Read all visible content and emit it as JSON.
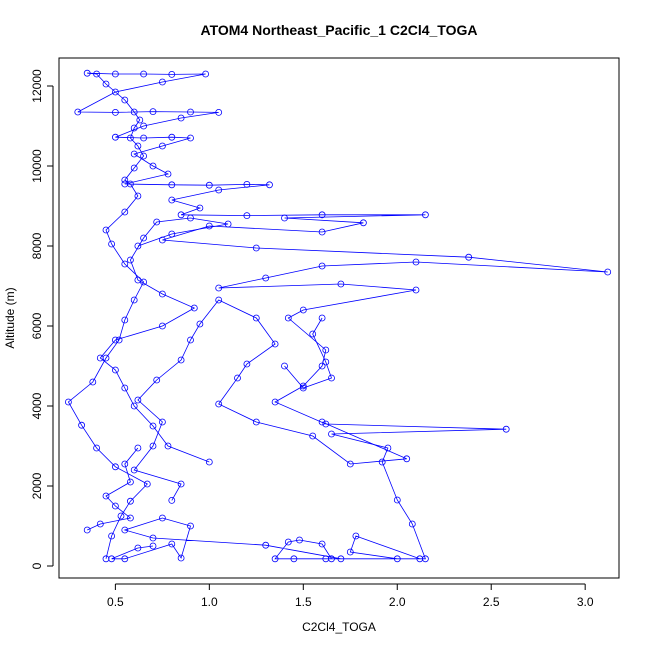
{
  "chart_data": {
    "type": "line",
    "title": "ATOM4 Northeast_Pacific_1 C2Cl4_TOGA",
    "xlabel": "C2Cl4_TOGA",
    "ylabel": "Altitude (m)",
    "xlim": [
      0.2,
      3.18
    ],
    "ylim": [
      -300,
      12700
    ],
    "x_ticks": [
      0.5,
      1.0,
      1.5,
      2.0,
      2.5,
      3.0
    ],
    "x_tick_labels": [
      "0.5",
      "1.0",
      "1.5",
      "2.0",
      "2.5",
      "3.0"
    ],
    "y_ticks": [
      0,
      2000,
      4000,
      6000,
      8000,
      10000,
      12000
    ],
    "y_tick_labels": [
      "0",
      "2000",
      "4000",
      "6000",
      "8000",
      "10000",
      "12000"
    ],
    "grid": false,
    "marker": "open-circle",
    "series": [
      {
        "color": "#0000ff",
        "points": [
          [
            0.45,
            180
          ],
          [
            0.48,
            750
          ],
          [
            0.53,
            1250
          ],
          [
            0.58,
            1620
          ],
          [
            0.67,
            2050
          ],
          [
            0.5,
            2480
          ],
          [
            0.4,
            2950
          ],
          [
            0.32,
            3520
          ],
          [
            0.25,
            4100
          ],
          [
            0.38,
            4600
          ],
          [
            0.45,
            5200
          ],
          [
            0.52,
            5650
          ],
          [
            0.55,
            6150
          ],
          [
            0.6,
            6650
          ],
          [
            0.65,
            7100
          ],
          [
            0.55,
            7550
          ],
          [
            0.48,
            8050
          ],
          [
            0.45,
            8400
          ],
          [
            0.55,
            8850
          ],
          [
            0.62,
            9250
          ],
          [
            0.58,
            9550
          ],
          [
            0.55,
            9650
          ],
          [
            0.6,
            9950
          ],
          [
            0.65,
            10250
          ],
          [
            0.62,
            10500
          ],
          [
            0.58,
            10700
          ],
          [
            0.6,
            10950
          ],
          [
            0.63,
            11150
          ],
          [
            0.6,
            11350
          ],
          [
            0.55,
            11650
          ],
          [
            0.45,
            12050
          ],
          [
            0.4,
            12300
          ],
          [
            0.35,
            12320
          ],
          [
            0.5,
            12300
          ],
          [
            0.65,
            12300
          ],
          [
            0.8,
            12290
          ],
          [
            0.98,
            12300
          ],
          [
            0.75,
            12100
          ],
          [
            0.5,
            11850
          ],
          [
            0.3,
            11350
          ],
          [
            0.5,
            11340
          ],
          [
            0.7,
            11360
          ],
          [
            0.9,
            11350
          ],
          [
            1.05,
            11340
          ],
          [
            0.85,
            11200
          ],
          [
            0.65,
            11000
          ],
          [
            0.5,
            10720
          ],
          [
            0.65,
            10700
          ],
          [
            0.8,
            10720
          ],
          [
            0.9,
            10700
          ],
          [
            0.75,
            10500
          ],
          [
            0.6,
            10300
          ],
          [
            0.7,
            10000
          ],
          [
            0.78,
            9800
          ],
          [
            0.55,
            9550
          ],
          [
            0.8,
            9530
          ],
          [
            1.0,
            9520
          ],
          [
            1.2,
            9540
          ],
          [
            1.32,
            9530
          ],
          [
            1.05,
            9400
          ],
          [
            0.8,
            9150
          ],
          [
            0.95,
            8950
          ],
          [
            0.85,
            8780
          ],
          [
            1.2,
            8760
          ],
          [
            1.6,
            8780
          ],
          [
            2.15,
            8780
          ],
          [
            1.4,
            8700
          ],
          [
            1.82,
            8580
          ],
          [
            1.6,
            8350
          ],
          [
            1.0,
            8500
          ],
          [
            0.75,
            8150
          ],
          [
            1.25,
            7950
          ],
          [
            2.38,
            7720
          ],
          [
            3.12,
            7350
          ],
          [
            2.1,
            7600
          ],
          [
            1.6,
            7500
          ],
          [
            1.3,
            7200
          ],
          [
            1.05,
            6950
          ],
          [
            1.7,
            7050
          ],
          [
            2.1,
            6900
          ],
          [
            1.5,
            6400
          ],
          [
            1.42,
            6200
          ],
          [
            1.62,
            5400
          ],
          [
            1.6,
            5000
          ],
          [
            1.5,
            4500
          ],
          [
            1.35,
            4100
          ],
          [
            1.62,
            3550
          ],
          [
            2.58,
            3420
          ],
          [
            1.65,
            3300
          ],
          [
            1.95,
            2950
          ],
          [
            1.92,
            2600
          ],
          [
            2.0,
            1650
          ],
          [
            2.08,
            1050
          ],
          [
            2.15,
            180
          ],
          [
            2.0,
            180
          ],
          [
            1.75,
            350
          ],
          [
            1.78,
            750
          ],
          [
            2.12,
            180
          ],
          [
            1.65,
            180
          ],
          [
            1.6,
            550
          ],
          [
            1.48,
            650
          ],
          [
            1.42,
            600
          ],
          [
            1.35,
            180
          ],
          [
            1.45,
            180
          ],
          [
            1.62,
            180
          ],
          [
            1.7,
            180
          ],
          [
            1.3,
            520
          ],
          [
            0.7,
            700
          ],
          [
            0.55,
            900
          ],
          [
            0.75,
            1200
          ],
          [
            0.9,
            1000
          ],
          [
            0.85,
            200
          ],
          [
            0.8,
            550
          ],
          [
            0.55,
            180
          ],
          [
            0.48,
            180
          ],
          [
            0.62,
            450
          ],
          [
            0.7,
            500
          ]
        ]
      },
      {
        "color": "#0000ff",
        "points": [
          [
            0.8,
            1640
          ],
          [
            0.85,
            2050
          ],
          [
            0.6,
            2400
          ],
          [
            0.7,
            3000
          ],
          [
            0.75,
            3600
          ],
          [
            0.62,
            4150
          ],
          [
            0.72,
            4650
          ],
          [
            0.85,
            5150
          ],
          [
            0.9,
            5650
          ],
          [
            0.95,
            6050
          ],
          [
            1.05,
            6650
          ],
          [
            1.25,
            6200
          ],
          [
            1.35,
            5550
          ],
          [
            1.2,
            5050
          ],
          [
            1.15,
            4700
          ],
          [
            1.05,
            4050
          ],
          [
            1.25,
            3600
          ],
          [
            1.55,
            3250
          ],
          [
            1.75,
            2550
          ],
          [
            2.05,
            2680
          ],
          [
            1.6,
            3600
          ]
        ]
      },
      {
        "color": "#0000ff",
        "points": [
          [
            0.62,
            2950
          ],
          [
            0.55,
            2550
          ],
          [
            0.58,
            2100
          ],
          [
            0.45,
            1750
          ],
          [
            0.5,
            1500
          ],
          [
            0.58,
            1200
          ],
          [
            0.42,
            1050
          ],
          [
            0.35,
            900
          ]
        ]
      },
      {
        "color": "#0000ff",
        "points": [
          [
            1.0,
            2600
          ],
          [
            0.78,
            3000
          ],
          [
            0.7,
            3500
          ],
          [
            0.6,
            4000
          ],
          [
            0.55,
            4450
          ],
          [
            0.5,
            4900
          ],
          [
            0.42,
            5200
          ],
          [
            0.5,
            5650
          ],
          [
            0.75,
            6000
          ],
          [
            0.92,
            6450
          ],
          [
            0.75,
            6800
          ],
          [
            0.62,
            7150
          ],
          [
            0.58,
            7650
          ],
          [
            0.65,
            8200
          ],
          [
            0.72,
            8600
          ],
          [
            0.9,
            8700
          ],
          [
            1.1,
            8550
          ],
          [
            0.8,
            8300
          ],
          [
            0.62,
            8000
          ]
        ]
      },
      {
        "color": "#0000ff",
        "points": [
          [
            1.6,
            6200
          ],
          [
            1.55,
            5800
          ],
          [
            1.62,
            5100
          ],
          [
            1.65,
            4700
          ],
          [
            1.5,
            4450
          ],
          [
            1.4,
            5000
          ]
        ]
      }
    ]
  }
}
